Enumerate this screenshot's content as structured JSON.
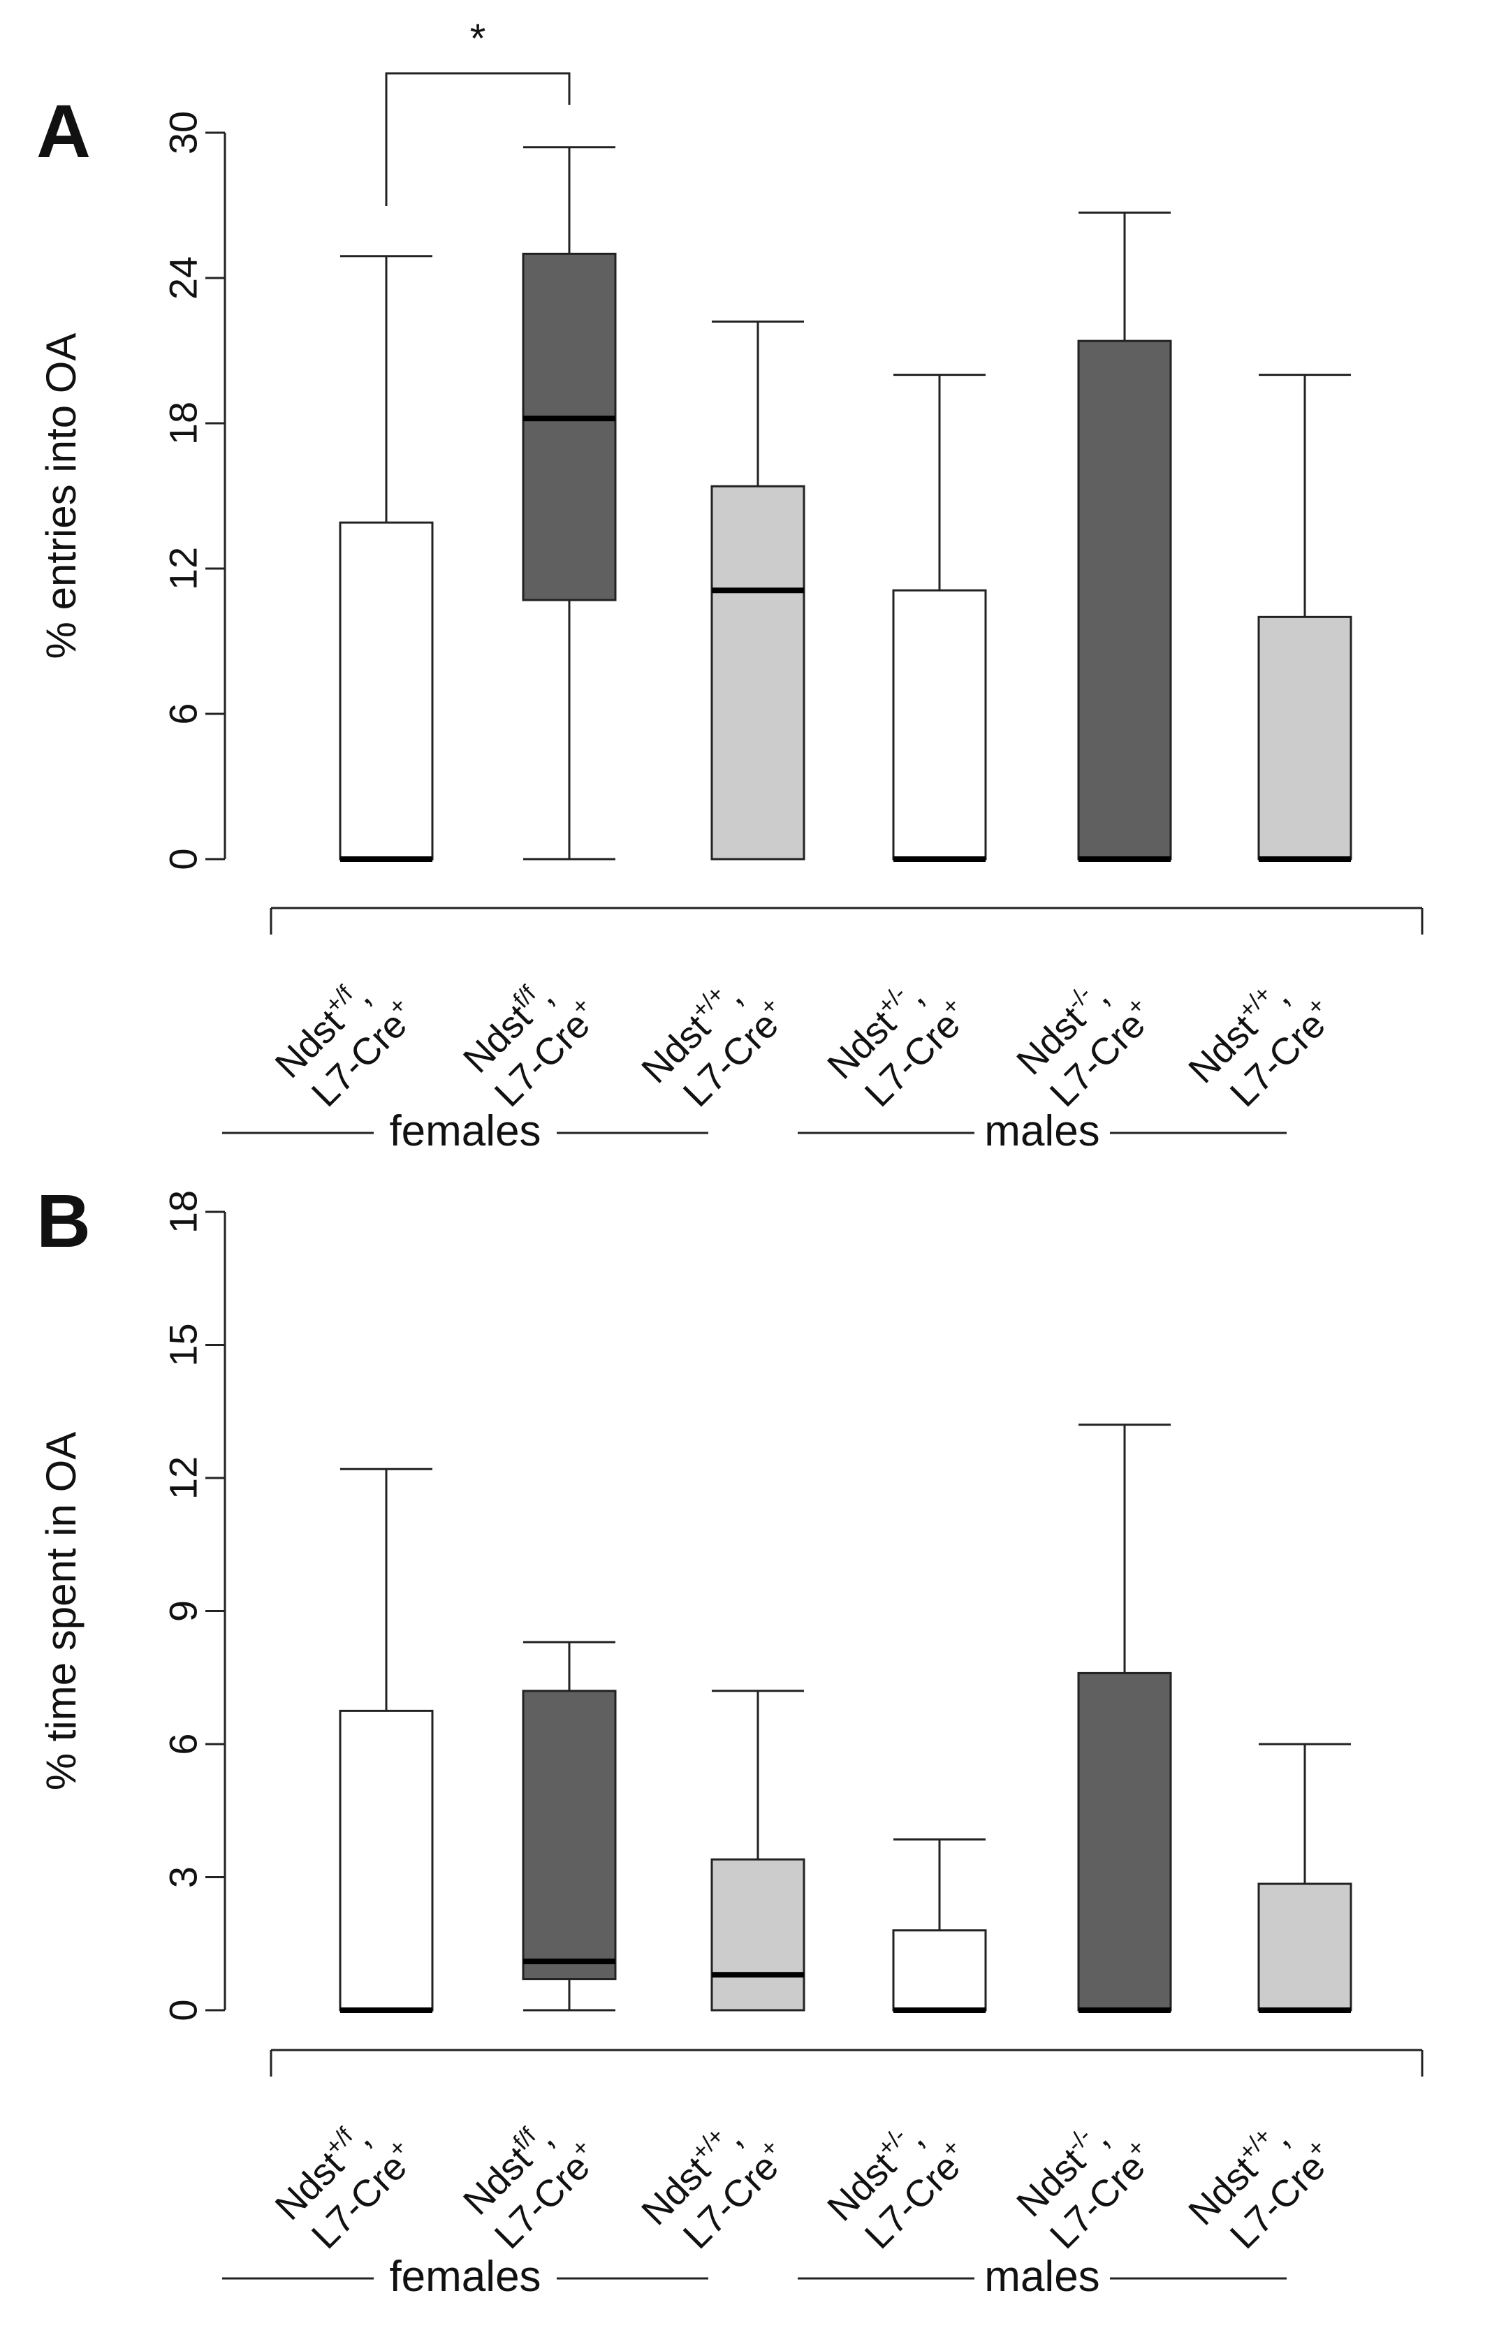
{
  "colors": {
    "white": "#ffffff",
    "light_gray": "#cccccc",
    "dark_gray": "#606060"
  },
  "groups": {
    "females": "females",
    "males": "males"
  },
  "chart_data": [
    {
      "type": "box",
      "panel": "A",
      "ylabel": "% entries into OA",
      "ylim": [
        0,
        30
      ],
      "yticks": [
        0,
        6,
        12,
        18,
        24,
        30
      ],
      "categories": [
        {
          "name": "Ndst",
          "sup": "+/f",
          "second_line": "L7-Cre",
          "second_sup": "+",
          "group": "females",
          "color": "white"
        },
        {
          "name": "Ndst",
          "sup": "f/f",
          "second_line": "L7-Cre",
          "second_sup": "+",
          "group": "females",
          "color": "dark_gray"
        },
        {
          "name": "Ndst",
          "sup": "+/+",
          "second_line": "L7-Cre",
          "second_sup": "+",
          "group": "females",
          "color": "light_gray"
        },
        {
          "name": "Ndst",
          "sup": "+/-",
          "second_line": "L7-Cre",
          "second_sup": "+",
          "group": "males",
          "color": "white"
        },
        {
          "name": "Ndst",
          "sup": "-/-",
          "second_line": "L7-Cre",
          "second_sup": "+",
          "group": "males",
          "color": "dark_gray"
        },
        {
          "name": "Ndst",
          "sup": "+/+",
          "second_line": "L7-Cre",
          "second_sup": "+",
          "group": "males",
          "color": "light_gray"
        }
      ],
      "boxes": [
        {
          "min": 0,
          "q1": 0,
          "median": 0,
          "q3": 13.9,
          "max": 24.9
        },
        {
          "min": 0,
          "q1": 10.7,
          "median": 18.2,
          "q3": 25.0,
          "max": 29.4
        },
        {
          "min": 0,
          "q1": 0,
          "median": 11.1,
          "q3": 15.4,
          "max": 22.2
        },
        {
          "min": 0,
          "q1": 0,
          "median": 0,
          "q3": 11.1,
          "max": 20.0
        },
        {
          "min": 0,
          "q1": 0,
          "median": 0,
          "q3": 21.4,
          "max": 26.7
        },
        {
          "min": 0,
          "q1": 0,
          "median": 0,
          "q3": 10.0,
          "max": 20.0
        }
      ],
      "significance": {
        "from": 0,
        "to": 1,
        "label": "*"
      }
    },
    {
      "type": "box",
      "panel": "B",
      "ylabel": "% time spent in OA",
      "ylim": [
        0,
        18
      ],
      "yticks": [
        0,
        3,
        6,
        9,
        12,
        15,
        18
      ],
      "categories": [
        {
          "name": "Ndst",
          "sup": "+/f",
          "second_line": "L7-Cre",
          "second_sup": "+",
          "group": "females",
          "color": "white"
        },
        {
          "name": "Ndst",
          "sup": "f/f",
          "second_line": "L7-Cre",
          "second_sup": "+",
          "group": "females",
          "color": "dark_gray"
        },
        {
          "name": "Ndst",
          "sup": "+/+",
          "second_line": "L7-Cre",
          "second_sup": "+",
          "group": "females",
          "color": "light_gray"
        },
        {
          "name": "Ndst",
          "sup": "+/-",
          "second_line": "L7-Cre",
          "second_sup": "+",
          "group": "males",
          "color": "white"
        },
        {
          "name": "Ndst",
          "sup": "-/-",
          "second_line": "L7-Cre",
          "second_sup": "+",
          "group": "males",
          "color": "dark_gray"
        },
        {
          "name": "Ndst",
          "sup": "+/+",
          "second_line": "L7-Cre",
          "second_sup": "+",
          "group": "males",
          "color": "light_gray"
        }
      ],
      "boxes": [
        {
          "min": 0,
          "q1": 0,
          "median": 0,
          "q3": 6.75,
          "max": 12.2
        },
        {
          "min": 0,
          "q1": 0.7,
          "median": 1.1,
          "q3": 7.2,
          "max": 8.3
        },
        {
          "min": 0,
          "q1": 0,
          "median": 0.8,
          "q3": 3.4,
          "max": 7.2
        },
        {
          "min": 0,
          "q1": 0,
          "median": 0,
          "q3": 1.8,
          "max": 3.85
        },
        {
          "min": 0,
          "q1": 0,
          "median": 0,
          "q3": 7.6,
          "max": 13.2
        },
        {
          "min": 0,
          "q1": 0,
          "median": 0,
          "q3": 2.85,
          "max": 6.0
        }
      ]
    }
  ]
}
